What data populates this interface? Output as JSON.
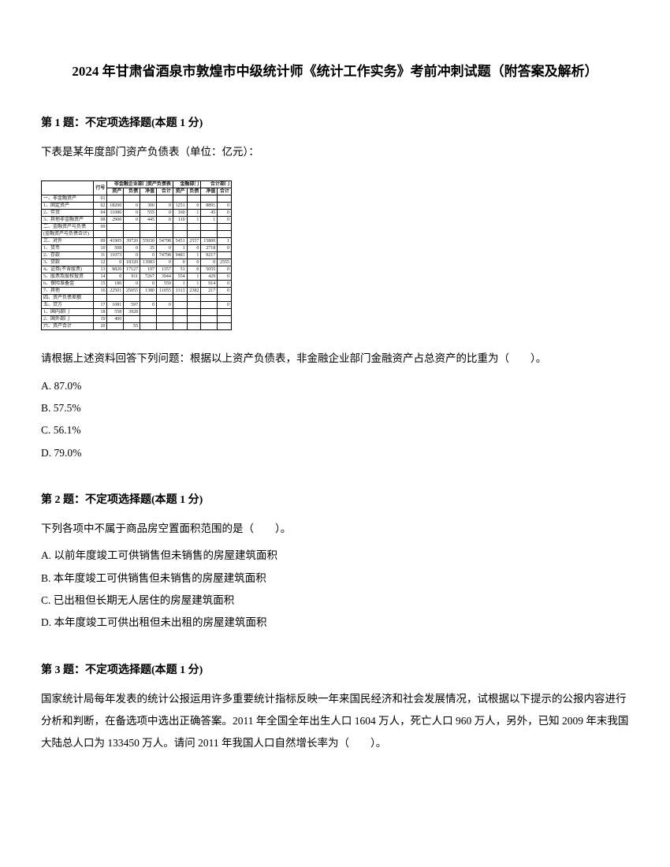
{
  "title": "2024 年甘肃省酒泉市敦煌市中级统计师《统计工作实务》考前冲刺试题（附答案及解析）",
  "q1": {
    "header": "第 1 题：不定项选择题(本题 1 分)",
    "intro": "下表是某年度部门资产负债表（单位：亿元）：",
    "prompt": "请根据上述资料回答下列问题：根据以上资产负债表，非金融企业部门金融资产占总资产的比重为（　　）。",
    "optA": "A. 87.0%",
    "optB": "B. 57.5%",
    "optC": "C. 56.1%",
    "optD": "D. 79.0%",
    "table": {
      "thead_row": [
        "非金融企业部门资产负债表",
        "金融部门",
        "合计部门"
      ],
      "sub_head": [
        "行号",
        "资产",
        "负债",
        "净值",
        "合计",
        "资产",
        "负债",
        "净值",
        "合计"
      ],
      "rows": [
        [
          "一、非金融资产",
          "01",
          "",
          "",
          "",
          "",
          "",
          "",
          "",
          ""
        ],
        [
          "1、固定资产",
          "02",
          "18200",
          "0",
          "300",
          "0",
          "1251",
          "0",
          "8891",
          "0"
        ],
        [
          "2、存货",
          "04",
          "11080",
          "0",
          "555",
          "0",
          "160",
          "1",
          "45",
          "0"
        ],
        [
          "3、其他非金融资产",
          "08",
          "2900",
          "0",
          "445",
          "0",
          "110",
          "1",
          "1",
          "0"
        ],
        [
          "二、金融资产与负债",
          "09",
          "",
          "",
          "",
          "",
          "",
          "",
          "",
          ""
        ],
        [
          "(金融资产与负债合计)",
          "",
          "",
          "",
          "",
          "",
          "",
          "",
          "",
          ""
        ],
        [
          "三、对外",
          "09",
          "41905",
          "39720",
          "55030",
          "54798",
          "5451",
          "2557",
          "15800",
          "1"
        ],
        [
          "1、货币",
          "10",
          "508",
          "0",
          "35",
          "0",
          "1",
          "0",
          "2718",
          "0"
        ],
        [
          "2、存款",
          "11",
          "11073",
          "0",
          "0",
          "74798",
          "9481",
          "1",
          "9217",
          ""
        ],
        [
          "3、贷款",
          "12",
          "0",
          "18320",
          "13983",
          "0",
          "0",
          "0",
          "0",
          "2555"
        ],
        [
          "4、证券(不含股票)",
          "13",
          "8820",
          "17127",
          "107",
          "1357",
          "51",
          "0",
          "5055",
          "0"
        ],
        [
          "5、股票及股权投资",
          "14",
          "0",
          "911",
          "7267",
          "3944",
          "554",
          "1",
          "429",
          "0"
        ],
        [
          "6、保险准备金",
          "15",
          "180",
          "0",
          "0",
          "559",
          "1",
          "1",
          "914",
          "0"
        ],
        [
          "7、其他",
          "16",
          "22501",
          "25055",
          "1380",
          "11055",
          "1313",
          "2382",
          "217",
          "0"
        ],
        [
          "四、资产负债差额",
          "",
          "",
          "",
          "",
          "",
          "",
          "",
          "",
          ""
        ],
        [
          "五、贷方",
          "17",
          "1081",
          "597",
          "0",
          "0",
          "",
          "",
          "",
          "0"
        ],
        [
          "1、国内部门",
          "18",
          "558",
          "3928",
          "",
          "",
          "",
          "",
          "",
          ""
        ],
        [
          "2、国外部门",
          "19",
          "400",
          "",
          "",
          "",
          "",
          "",
          "",
          ""
        ],
        [
          "六、资产合计",
          "20",
          "",
          "55",
          "",
          "",
          "",
          "",
          "",
          ""
        ]
      ]
    }
  },
  "q2": {
    "header": "第 2 题：不定项选择题(本题 1 分)",
    "prompt": "下列各项中不属于商品房空置面积范围的是（　　）。",
    "optA": "A. 以前年度竣工可供销售但未销售的房屋建筑面积",
    "optB": "B. 本年度竣工可供销售但未销售的房屋建筑面积",
    "optC": "C. 已出租但长期无人居住的房屋建筑面积",
    "optD": "D. 本年度竣工可供出租但未出租的房屋建筑面积"
  },
  "q3": {
    "header": "第 3 题：不定项选择题(本题 1 分)",
    "prompt": "国家统计局每年发表的统计公报运用许多重要统计指标反映一年来国民经济和社会发展情况，试根据以下提示的公报内容进行分析和判断，在备选项中选出正确答案。2011 年全国全年出生人口 1604 万人，死亡人口 960 万人，另外，已知 2009 年末我国大陆总人口为 133450 万人。请问 2011 年我国人口自然增长率为（　　）。"
  }
}
